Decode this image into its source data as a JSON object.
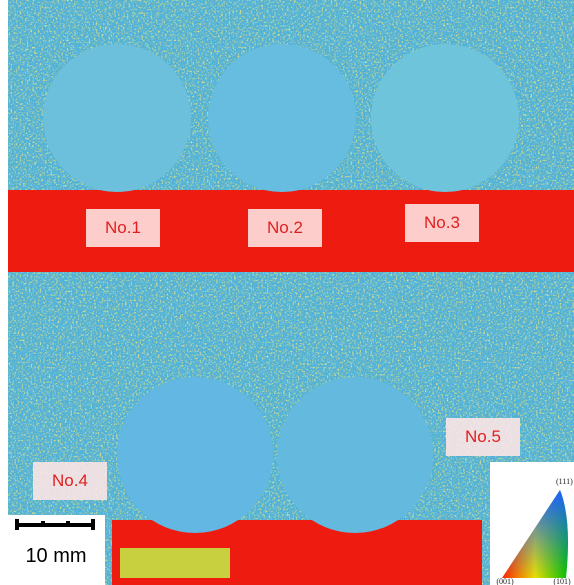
{
  "labels": [
    "No.1",
    "No.2",
    "No.3",
    "No.4",
    "No.5"
  ],
  "scale_bar": {
    "label": "10 mm"
  },
  "legend": {
    "top": "(111)",
    "bottom_left": "(001)",
    "bottom_right": "(101)"
  }
}
